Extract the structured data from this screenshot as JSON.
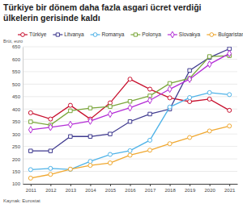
{
  "chart_data": {
    "type": "line",
    "title": "Türkiye bir dönem daha fazla asgari ücret verdiği ülkelerin gerisinde kaldı",
    "y_label": "Brüt, euro",
    "source": "Kaynak: Eurostat",
    "x": [
      2011,
      2012,
      2013,
      2014,
      2015,
      2016,
      2017,
      2018,
      2019,
      2020,
      2021
    ],
    "xlim": [
      2010.6,
      2021.4
    ],
    "xticks": [
      2011,
      2012,
      2013,
      2014,
      2015,
      2016,
      2017,
      2018,
      2019,
      2020,
      2021
    ],
    "ylim": [
      100,
      650
    ],
    "yticks": [
      100,
      150,
      200,
      250,
      300,
      350,
      400,
      450,
      500,
      550,
      600,
      650
    ],
    "grid": true,
    "legend": "top",
    "series": [
      {
        "name": "Türkiye",
        "color": "#c8102e",
        "marker": "circle",
        "values": [
          385,
          360,
          415,
          360,
          425,
          520,
          480,
          445,
          430,
          440,
          395
        ]
      },
      {
        "name": "Litvanya",
        "color": "#3f3a8f",
        "marker": "square",
        "values": [
          232,
          232,
          290,
          290,
          300,
          350,
          380,
          400,
          555,
          607,
          642
        ]
      },
      {
        "name": "Romanya",
        "color": "#4fb3e8",
        "marker": "circle",
        "values": [
          157,
          162,
          158,
          190,
          218,
          233,
          275,
          408,
          446,
          466,
          458
        ]
      },
      {
        "name": "Polonya",
        "color": "#7aa63a",
        "marker": "square",
        "values": [
          349,
          336,
          393,
          404,
          410,
          431,
          453,
          503,
          523,
          611,
          614
        ]
      },
      {
        "name": "Slovakya",
        "color": "#b42dd6",
        "marker": "diamond",
        "values": [
          317,
          327,
          338,
          352,
          380,
          405,
          435,
          480,
          520,
          580,
          623
        ]
      },
      {
        "name": "Bulgaristan",
        "color": "#f0a830",
        "marker": "circle",
        "values": [
          123,
          138,
          159,
          174,
          184,
          215,
          235,
          261,
          286,
          312,
          332
        ]
      }
    ]
  }
}
